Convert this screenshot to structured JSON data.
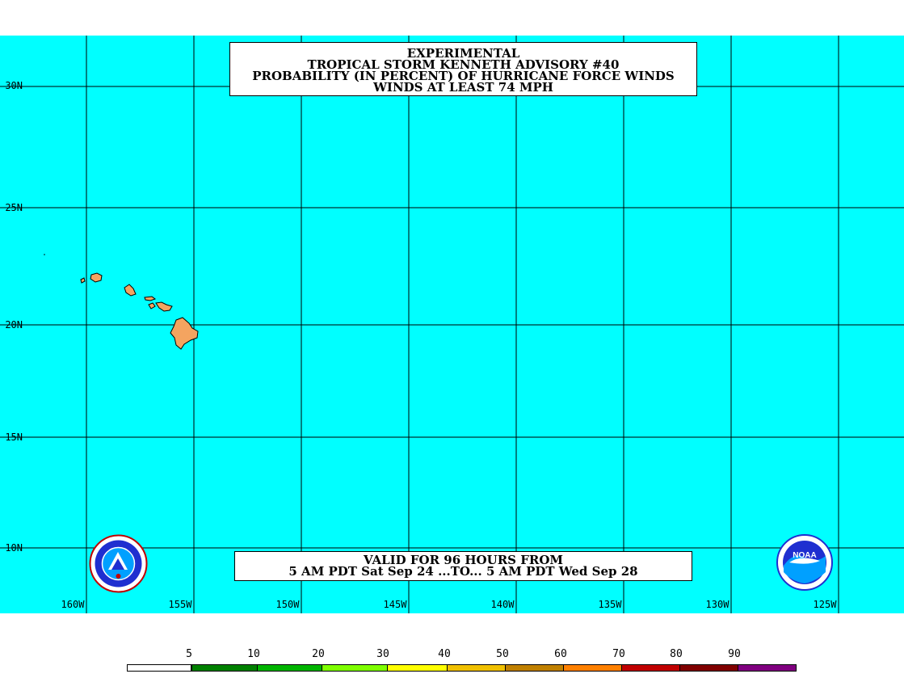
{
  "title": {
    "line1": "EXPERIMENTAL",
    "line2": "TROPICAL STORM KENNETH ADVISORY #40",
    "line3": "PROBABILITY (IN PERCENT) OF HURRICANE FORCE WINDS",
    "line4": "WINDS AT LEAST 74 MPH"
  },
  "valid": {
    "line1": "VALID FOR 96 HOURS FROM",
    "line2": "5 AM PDT Sat Sep 24 ...TO... 5 AM PDT Wed Sep 28"
  },
  "map": {
    "ocean_color": "#00ffff",
    "land_color": "#f4a460",
    "grid_color": "#000000",
    "lat_labels": [
      "30N",
      "25N",
      "20N",
      "15N",
      "10N"
    ],
    "lon_labels": [
      "160W",
      "155W",
      "150W",
      "145W",
      "140W",
      "135W",
      "130W",
      "125W"
    ]
  },
  "logos": {
    "left": "nws-logo",
    "right": "noaa-logo",
    "noaa_text": "NOAA"
  },
  "legend": {
    "ticks": [
      "5",
      "10",
      "20",
      "30",
      "40",
      "50",
      "60",
      "70",
      "80",
      "90"
    ],
    "colors": [
      "#ffffff",
      "#008000",
      "#00b400",
      "#00dd00",
      "#7fff00",
      "#ffff00",
      "#f0c000",
      "#c08000",
      "#ff8000",
      "#c00000",
      "#800000",
      "#800080"
    ]
  }
}
